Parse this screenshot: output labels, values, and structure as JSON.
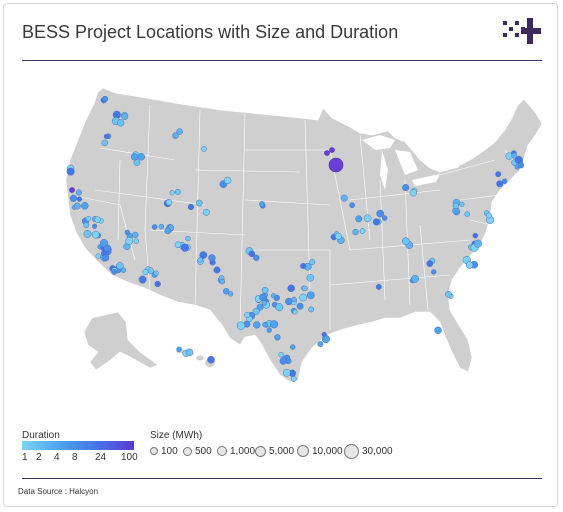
{
  "header": {
    "title": "BESS Project Locations with Size and Duration",
    "logo_icon": "pixel-plus-logo-icon",
    "logo_color": "#3d2a5c"
  },
  "colors": {
    "land": "#cfcfcf",
    "state_border": "#ffffff",
    "point_stroke": "#4a6fb8",
    "duration_low": "#7ed3f4",
    "duration_high": "#5a3bd1"
  },
  "legend": {
    "duration": {
      "title": "Duration",
      "ticks": [
        "1",
        "2",
        "4",
        "8",
        "24",
        "100"
      ]
    },
    "size": {
      "title": "Size (MWh)",
      "items": [
        "100",
        "500",
        "1,000",
        "5,000",
        "10,000",
        "30,000"
      ]
    }
  },
  "footer": {
    "source": "Data Source : Halcyon"
  }
}
